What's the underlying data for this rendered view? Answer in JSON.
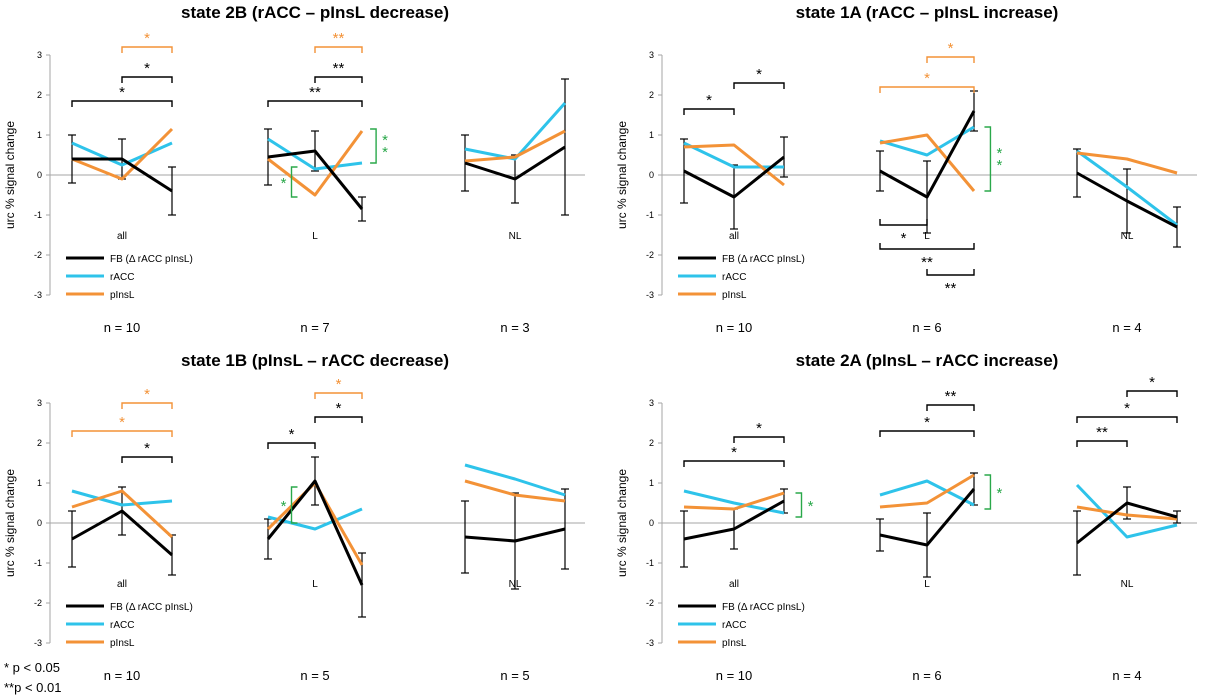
{
  "colors": {
    "fb": "#000000",
    "racc": "#2ec3ea",
    "pinsl": "#f39237",
    "green": "#2aa84a",
    "axis": "#a6a6a6"
  },
  "footnotes": {
    "p05": "* p < 0.05",
    "p01": "**p < 0.01"
  },
  "chart_data": [
    {
      "type": "line",
      "title": "state 2B (rACC – pInsL decrease)",
      "ylabel": "urc % signal change",
      "ylim": [
        -3,
        3
      ],
      "yticks": [
        "3",
        "2",
        "1",
        "0",
        "-1",
        "-2",
        "-3"
      ],
      "groups": [
        {
          "label": "all",
          "n": "n = 10",
          "series": {
            "fb": [
              0.4,
              0.4,
              -0.4
            ],
            "racc": [
              0.8,
              0.25,
              0.8
            ],
            "pinsl": [
              0.4,
              -0.1,
              1.15
            ]
          },
          "err": [
            0.6,
            0.5,
            0.6
          ]
        },
        {
          "label": "L",
          "n": "n = 7",
          "series": {
            "fb": [
              0.45,
              0.6,
              -0.85
            ],
            "racc": [
              0.9,
              0.15,
              0.3
            ],
            "pinsl": [
              0.4,
              -0.5,
              1.1
            ]
          },
          "err": [
            0.7,
            0.5,
            0.3
          ]
        },
        {
          "label": "NL",
          "n": "n = 3",
          "series": {
            "fb": [
              0.3,
              -0.1,
              0.7
            ],
            "racc": [
              0.65,
              0.4,
              1.8
            ],
            "pinsl": [
              0.35,
              0.45,
              1.1
            ]
          },
          "err": [
            0.7,
            0.6,
            1.7
          ]
        }
      ],
      "legend": [
        "FB (Δ rACC pInsL)",
        "rACC",
        "pInsL"
      ],
      "annotations": [
        {
          "text": "*",
          "color": "orange",
          "group": 0,
          "from": 1,
          "to": 2,
          "y": 3.2
        },
        {
          "text": "*",
          "color": "black",
          "group": 0,
          "from": 1,
          "to": 2,
          "y": 2.45
        },
        {
          "text": "*",
          "color": "black",
          "group": 0,
          "from": 0,
          "to": 2,
          "y": 1.85
        },
        {
          "text": "**",
          "color": "orange",
          "group": 1,
          "from": 1,
          "to": 2,
          "y": 3.2
        },
        {
          "text": "**",
          "color": "black",
          "group": 1,
          "from": 1,
          "to": 2,
          "y": 2.45
        },
        {
          "text": "**",
          "color": "black",
          "group": 1,
          "from": 0,
          "to": 2,
          "y": 1.85
        },
        {
          "text": "*",
          "kind": "vbracket",
          "color": "green",
          "group": 1,
          "at": 0.5,
          "y1": 0.2,
          "y2": -0.55,
          "side": "left"
        },
        {
          "text": "**",
          "kind": "vbracket",
          "color": "green",
          "group": 1,
          "at": 2.3,
          "y1": 1.15,
          "y2": 0.3,
          "side": "right"
        }
      ]
    },
    {
      "type": "line",
      "title": "state 1A (rACC – pInsL increase)",
      "ylabel": "urc % signal change",
      "ylim": [
        -3,
        3
      ],
      "yticks": [
        "3",
        "2",
        "1",
        "0",
        "-1",
        "-2",
        "-3"
      ],
      "groups": [
        {
          "label": "all",
          "n": "n = 10",
          "series": {
            "fb": [
              0.1,
              -0.55,
              0.45
            ],
            "racc": [
              0.8,
              0.2,
              0.2
            ],
            "pinsl": [
              0.7,
              0.75,
              -0.25
            ]
          },
          "err": [
            0.8,
            0.8,
            0.5
          ]
        },
        {
          "label": "L",
          "n": "n = 6",
          "series": {
            "fb": [
              0.1,
              -0.55,
              1.6
            ],
            "racc": [
              0.85,
              0.5,
              1.2
            ],
            "pinsl": [
              0.8,
              1.0,
              -0.4
            ]
          },
          "err": [
            0.5,
            0.9,
            0.5
          ]
        },
        {
          "label": "NL",
          "n": "n = 4",
          "series": {
            "fb": [
              0.05,
              -0.65,
              -1.3
            ],
            "racc": [
              0.6,
              -0.3,
              -1.25
            ],
            "pinsl": [
              0.55,
              0.4,
              0.05
            ]
          },
          "err": [
            0.6,
            0.8,
            0.5
          ]
        }
      ],
      "legend": [
        "FB (Δ rACC pInsL)",
        "rACC",
        "pInsL"
      ],
      "annotations": [
        {
          "text": "*",
          "color": "black",
          "group": 0,
          "from": 0,
          "to": 1,
          "y": 1.65
        },
        {
          "text": "*",
          "color": "black",
          "group": 0,
          "from": 1,
          "to": 2,
          "y": 2.3
        },
        {
          "text": "*",
          "color": "orange",
          "group": 1,
          "from": 1,
          "to": 2,
          "y": 2.95
        },
        {
          "text": "*",
          "color": "orange",
          "group": 1,
          "from": 0,
          "to": 2,
          "y": 2.2
        },
        {
          "text": "**",
          "kind": "vbracket",
          "color": "green",
          "group": 1,
          "at": 2.35,
          "y1": 1.2,
          "y2": -0.4,
          "side": "right"
        },
        {
          "text": "*",
          "color": "black",
          "group": 1,
          "from": 0,
          "to": 1,
          "y": -1.25,
          "down": true
        },
        {
          "text": "**",
          "color": "black",
          "group": 1,
          "from": 0,
          "to": 2,
          "y": -1.85,
          "down": true
        },
        {
          "text": "**",
          "color": "black",
          "group": 1,
          "from": 1,
          "to": 2,
          "y": -2.5,
          "down": true
        }
      ]
    },
    {
      "type": "line",
      "title": "state 1B (pInsL – rACC decrease)",
      "ylabel": "urc % signal change",
      "ylim": [
        -3,
        3
      ],
      "yticks": [
        "3",
        "2",
        "1",
        "0",
        "-1",
        "-2",
        "-3"
      ],
      "groups": [
        {
          "label": "all",
          "n": "n = 10",
          "series": {
            "fb": [
              -0.4,
              0.3,
              -0.8
            ],
            "racc": [
              0.8,
              0.45,
              0.55
            ],
            "pinsl": [
              0.4,
              0.8,
              -0.35
            ]
          },
          "err": [
            0.7,
            0.6,
            0.5
          ]
        },
        {
          "label": "L",
          "n": "n = 5",
          "series": {
            "fb": [
              -0.4,
              1.05,
              -1.55
            ],
            "racc": [
              0.15,
              -0.15,
              0.35
            ],
            "pinsl": [
              -0.15,
              1.0,
              -1.05
            ]
          },
          "err": [
            0.5,
            0.6,
            0.8
          ]
        },
        {
          "label": "NL",
          "n": "n = 5",
          "series": {
            "fb": [
              -0.35,
              -0.45,
              -0.15
            ],
            "racc": [
              1.45,
              1.1,
              0.7
            ],
            "pinsl": [
              1.05,
              0.7,
              0.55
            ]
          },
          "err": [
            0.9,
            1.2,
            1.0
          ]
        }
      ],
      "legend": [
        "FB (Δ rACC pInsL)",
        "rACC",
        "pInsL"
      ],
      "annotations": [
        {
          "text": "*",
          "color": "orange",
          "group": 0,
          "from": 1,
          "to": 2,
          "y": 3.0
        },
        {
          "text": "*",
          "color": "orange",
          "group": 0,
          "from": 0,
          "to": 2,
          "y": 2.3
        },
        {
          "text": "*",
          "color": "black",
          "group": 0,
          "from": 1,
          "to": 2,
          "y": 1.65
        },
        {
          "text": "*",
          "color": "black",
          "group": 1,
          "from": 0,
          "to": 1,
          "y": 2.0
        },
        {
          "text": "*",
          "color": "orange",
          "group": 1,
          "from": 1,
          "to": 2,
          "y": 3.25
        },
        {
          "text": "*",
          "color": "black",
          "group": 1,
          "from": 1,
          "to": 2,
          "y": 2.65
        },
        {
          "text": "*",
          "kind": "vbracket",
          "color": "green",
          "group": 1,
          "at": 0.5,
          "y1": 0.9,
          "y2": 0.0,
          "side": "left"
        }
      ]
    },
    {
      "type": "line",
      "title": "state 2A (pInsL – rACC increase)",
      "ylabel": "urc % signal change",
      "ylim": [
        -3,
        3
      ],
      "yticks": [
        "3",
        "2",
        "1",
        "0",
        "-1",
        "-2",
        "-3"
      ],
      "groups": [
        {
          "label": "all",
          "n": "n = 10",
          "series": {
            "fb": [
              -0.4,
              -0.15,
              0.55
            ],
            "racc": [
              0.8,
              0.5,
              0.25
            ],
            "pinsl": [
              0.4,
              0.35,
              0.75
            ]
          },
          "err": [
            0.7,
            0.5,
            0.3
          ]
        },
        {
          "label": "L",
          "n": "n = 6",
          "series": {
            "fb": [
              -0.3,
              -0.55,
              0.85
            ],
            "racc": [
              0.7,
              1.05,
              0.45
            ],
            "pinsl": [
              0.4,
              0.5,
              1.2
            ]
          },
          "err": [
            0.4,
            0.8,
            0.4
          ]
        },
        {
          "label": "NL",
          "n": "n = 4",
          "series": {
            "fb": [
              -0.5,
              0.5,
              0.15
            ],
            "racc": [
              0.95,
              -0.35,
              -0.05
            ],
            "pinsl": [
              0.4,
              0.2,
              0.1
            ]
          },
          "err": [
            0.8,
            0.4,
            0.15
          ]
        }
      ],
      "legend": [
        "FB (Δ rACC pInsL)",
        "rACC",
        "pInsL"
      ],
      "annotations": [
        {
          "text": "*",
          "color": "black",
          "group": 0,
          "from": 1,
          "to": 2,
          "y": 2.15
        },
        {
          "text": "*",
          "color": "black",
          "group": 0,
          "from": 0,
          "to": 2,
          "y": 1.55
        },
        {
          "text": "*",
          "kind": "vbracket",
          "color": "green",
          "group": 0,
          "at": 2.35,
          "y1": 0.75,
          "y2": 0.15,
          "side": "right"
        },
        {
          "text": "**",
          "color": "black",
          "group": 1,
          "from": 1,
          "to": 2,
          "y": 2.95
        },
        {
          "text": "*",
          "color": "black",
          "group": 1,
          "from": 0,
          "to": 2,
          "y": 2.3
        },
        {
          "text": "*",
          "kind": "vbracket",
          "color": "green",
          "group": 1,
          "at": 2.35,
          "y1": 1.2,
          "y2": 0.35,
          "side": "right"
        },
        {
          "text": "*",
          "color": "black",
          "group": 2,
          "from": 1,
          "to": 2,
          "y": 3.3
        },
        {
          "text": "*",
          "color": "black",
          "group": 2,
          "from": 0,
          "to": 2,
          "y": 2.65
        },
        {
          "text": "**",
          "color": "black",
          "group": 2,
          "from": 0,
          "to": 1,
          "y": 2.05
        }
      ]
    }
  ]
}
